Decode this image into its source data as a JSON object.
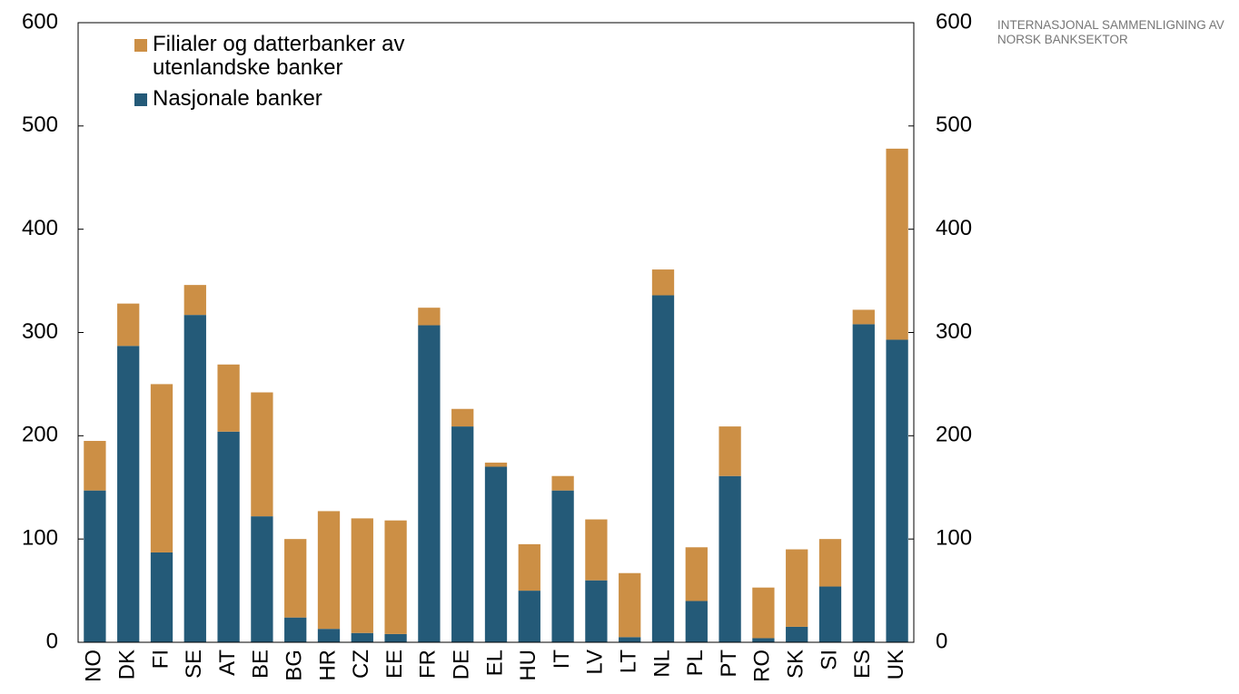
{
  "chart_data": {
    "type": "stacked_bar",
    "side_note": "INTERNASJONAL SAMMENLIGNING AV NORSK BANKSEKTOR",
    "categories": [
      "NO",
      "DK",
      "FI",
      "SE",
      "AT",
      "BE",
      "BG",
      "HR",
      "CZ",
      "EE",
      "FR",
      "DE",
      "EL",
      "HU",
      "IT",
      "LV",
      "LT",
      "NL",
      "PL",
      "PT",
      "RO",
      "SK",
      "SI",
      "ES",
      "UK"
    ],
    "series": [
      {
        "name": "Nasjonale banker",
        "color": "#245a78",
        "values": [
          147,
          287,
          87,
          317,
          204,
          122,
          24,
          13,
          9,
          8,
          307,
          209,
          170,
          50,
          147,
          60,
          5,
          336,
          40,
          161,
          4,
          15,
          54,
          308,
          293
        ]
      },
      {
        "name": "Filialer og datterbanker av utenlandske banker",
        "color": "#cc8f45",
        "values": [
          48,
          41,
          163,
          29,
          65,
          120,
          76,
          114,
          111,
          110,
          17,
          17,
          4,
          45,
          14,
          59,
          62,
          25,
          52,
          48,
          49,
          75,
          46,
          14,
          185
        ]
      }
    ],
    "ylim": [
      0,
      600
    ],
    "yticks": [
      0,
      100,
      200,
      300,
      400,
      500,
      600
    ],
    "y2lim": [
      0,
      600
    ],
    "y2ticks": [
      0,
      100,
      200,
      300,
      400,
      500,
      600
    ],
    "legend": "top-left"
  }
}
